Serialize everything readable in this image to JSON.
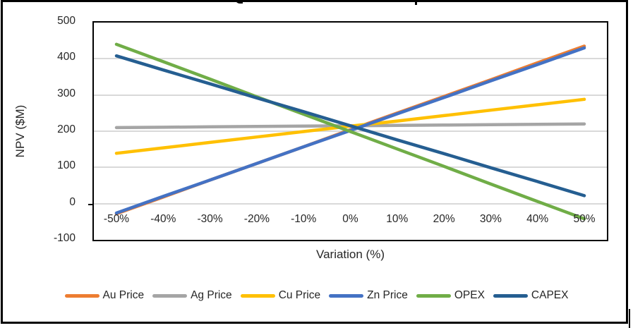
{
  "chart_data": {
    "type": "line",
    "title": "",
    "xlabel": "Variation (%)",
    "ylabel": "NPV ($M)",
    "x_categories": [
      "-50%",
      "-40%",
      "-30%",
      "-20%",
      "-10%",
      "0%",
      "10%",
      "20%",
      "30%",
      "40%",
      "50%"
    ],
    "x_values": [
      -50,
      -40,
      -30,
      -20,
      -10,
      0,
      10,
      20,
      30,
      40,
      50
    ],
    "ylim": [
      -100,
      500
    ],
    "ytick_labels_top_to_bottom": [
      "500",
      "400",
      "300",
      "200",
      "100",
      "0",
      "-100"
    ],
    "grid": "horizontal-only",
    "legend_position": "bottom",
    "colors": {
      "gridline": "#D9D9D9",
      "axis": "#000000",
      "text": "#262626"
    },
    "series": [
      {
        "name": "Au Price",
        "color": "#ED7D31",
        "values": [
          -28,
          18,
          65,
          111,
          157,
          204,
          250,
          296,
          342,
          389,
          435
        ]
      },
      {
        "name": "Ag Price",
        "color": "#A5A5A5",
        "values": [
          210,
          211,
          212,
          213,
          214,
          215,
          216,
          217,
          218,
          219,
          220
        ]
      },
      {
        "name": "Cu Price",
        "color": "#FFC000",
        "values": [
          139,
          154,
          169,
          184,
          199,
          214,
          228,
          243,
          258,
          273,
          288
        ]
      },
      {
        "name": "Zn Price",
        "color": "#4472C4",
        "values": [
          -26,
          20,
          65,
          111,
          157,
          202,
          248,
          293,
          339,
          384,
          430
        ]
      },
      {
        "name": "OPEX",
        "color": "#70AD47",
        "values": [
          440,
          392,
          344,
          295,
          247,
          199,
          151,
          103,
          54,
          6,
          -42
        ]
      },
      {
        "name": "CAPEX",
        "color": "#255E91",
        "values": [
          408,
          369,
          331,
          292,
          254,
          215,
          176,
          138,
          99,
          61,
          22
        ]
      }
    ]
  }
}
